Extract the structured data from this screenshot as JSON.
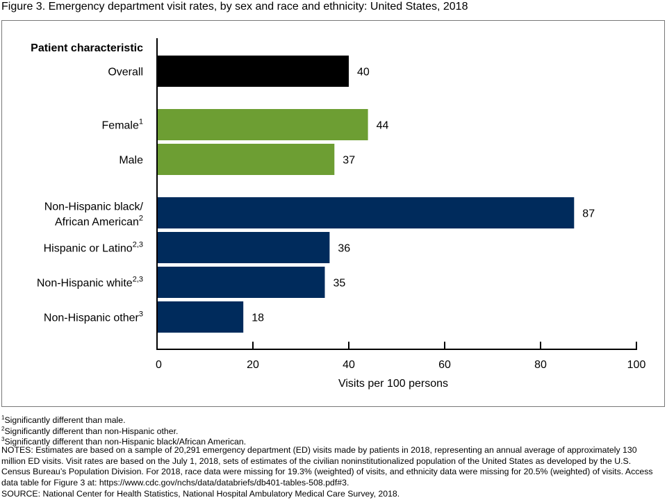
{
  "chart_data": {
    "type": "bar",
    "orientation": "horizontal",
    "title": "Figure 3. Emergency department visit rates, by sex and race and ethnicity: United States, 2018",
    "category_header": "Patient characteristic",
    "xlabel": "Visits per 100 persons",
    "xlim": [
      0,
      100
    ],
    "xticks": [
      0,
      20,
      40,
      60,
      80,
      100
    ],
    "grid": false,
    "categories": [
      {
        "label": "Overall",
        "sup": "",
        "value": 40,
        "group": "overall"
      },
      {
        "label": "Female",
        "sup": "1",
        "value": 44,
        "group": "sex"
      },
      {
        "label": "Male",
        "sup": "",
        "value": 37,
        "group": "sex"
      },
      {
        "label": "Non-Hispanic black/|African American",
        "sup": "2",
        "value": 87,
        "group": "race"
      },
      {
        "label": "Hispanic or Latino",
        "sup": "2,3",
        "value": 36,
        "group": "race"
      },
      {
        "label": "Non-Hispanic white",
        "sup": "2,3",
        "value": 35,
        "group": "race"
      },
      {
        "label": "Non-Hispanic other",
        "sup": "3",
        "value": 18,
        "group": "race"
      }
    ],
    "colors": {
      "overall": "#000000",
      "sex": "#6d9e33",
      "race": "#002b5c"
    }
  },
  "footnotes": [
    {
      "sup": "1",
      "text": "Significantly different than male."
    },
    {
      "sup": "2",
      "text": "Significantly different than non-Hispanic other."
    },
    {
      "sup": "3",
      "text": "Significantly different than non-Hispanic black/African American."
    }
  ],
  "notes": "NOTES: Estimates are based on a sample of 20,291 emergency department (ED) visits made by patients in 2018, representing an annual average of approximately 130 million ED visits. Visit rates are based on the July 1, 2018, sets of estimates of the civilian noninstitutionalized population of the United States as developed by the U.S. Census Bureau’s Population Division. For 2018, race data were missing for 19.3% (weighted) of visits, and ethnicity data were missing for 20.5% (weighted) of visits. Access data table for Figure 3 at: https://www.cdc.gov/nchs/data/databriefs/db401-tables-508.pdf#3.",
  "source": "SOURCE: National Center for Health Statistics, National Hospital Ambulatory Medical Care Survey, 2018."
}
